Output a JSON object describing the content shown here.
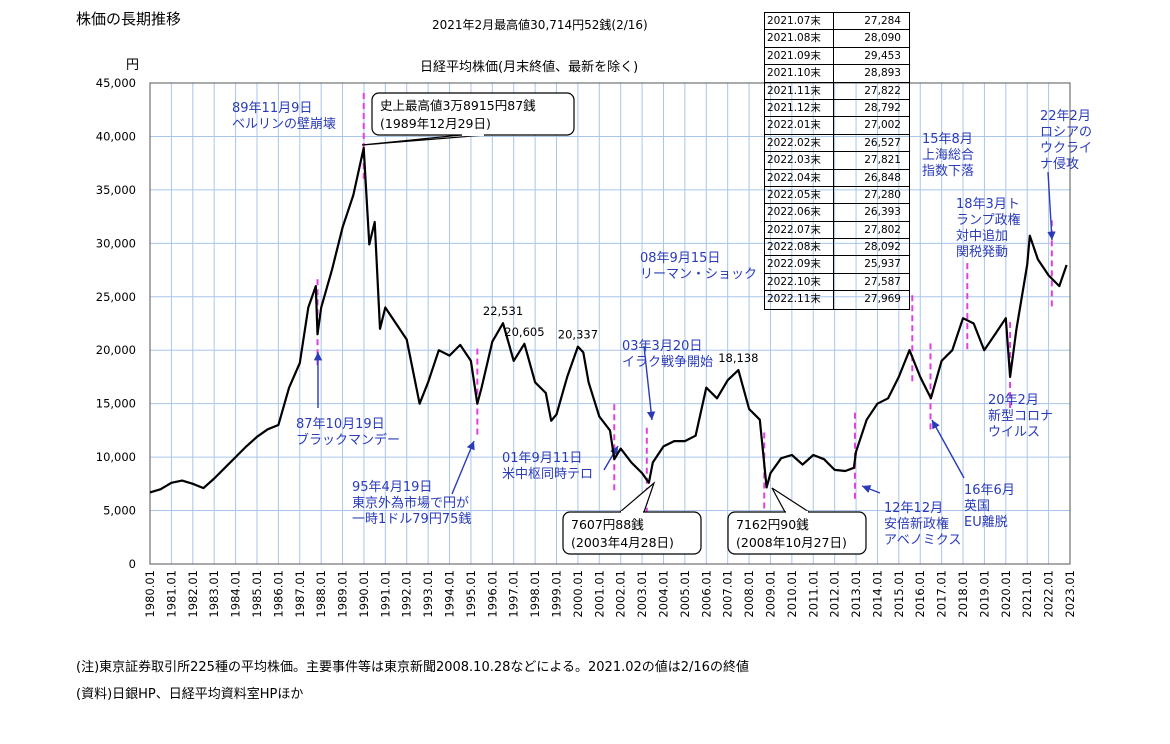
{
  "page": {
    "title": "株価の長期推移",
    "subtitle": "2021年2月最高値30,714円52銭(2/16)",
    "chart_title": "日経平均株価(月末終値、最新を除く)",
    "note": "(注)東京証券取引所225種の平均株価。主要事件等は東京新聞2008.10.28などによる。2021.02の値は2/16の終値",
    "source": "(資料)日銀HP、日経平均資料室HPほか"
  },
  "colors": {
    "line": "#000000",
    "grid": "#a9c6ea",
    "annotation": "#2a3bb8",
    "marker": "#e040e0"
  },
  "chart_data": {
    "type": "line",
    "title": "日経平均株価(月末終値、最新を除く)",
    "ylabel": "円",
    "xlabel": "",
    "ylim": [
      0,
      45000
    ],
    "xlim": [
      1980.0,
      2023.0
    ],
    "grid": true,
    "y_ticks": [
      "0",
      "5,000",
      "10,000",
      "15,000",
      "20,000",
      "25,000",
      "30,000",
      "35,000",
      "40,000",
      "45,000"
    ],
    "x_ticks": [
      "1980.01",
      "1981.01",
      "1982.01",
      "1983.01",
      "1984.01",
      "1985.01",
      "1986.01",
      "1987.01",
      "1988.01",
      "1989.01",
      "1990.01",
      "1991.01",
      "1992.01",
      "1993.01",
      "1994.01",
      "1995.01",
      "1996.01",
      "1997.01",
      "1998.01",
      "1999.01",
      "2000.01",
      "2001.01",
      "2002.01",
      "2003.01",
      "2004.01",
      "2005.01",
      "2006.01",
      "2007.01",
      "2008.01",
      "2009.01",
      "2010.01",
      "2011.01",
      "2012.01",
      "2013.01",
      "2014.01",
      "2015.01",
      "2016.01",
      "2017.01",
      "2018.01",
      "2019.01",
      "2020.01",
      "2021.01",
      "2022.01",
      "2023.01"
    ],
    "series": [
      {
        "name": "日経平均株価",
        "x": [
          1980.0,
          1980.5,
          1981.0,
          1981.5,
          1982.0,
          1982.5,
          1983.0,
          1983.5,
          1984.0,
          1984.5,
          1985.0,
          1985.5,
          1986.0,
          1986.5,
          1987.0,
          1987.4,
          1987.75,
          1987.83,
          1988.0,
          1988.5,
          1989.0,
          1989.5,
          1989.99,
          1990.25,
          1990.5,
          1990.75,
          1991.0,
          1991.5,
          1992.0,
          1992.6,
          1993.0,
          1993.5,
          1994.0,
          1994.5,
          1995.0,
          1995.3,
          1995.5,
          1996.0,
          1996.5,
          1997.0,
          1997.5,
          1998.0,
          1998.5,
          1998.75,
          1999.0,
          1999.5,
          2000.0,
          2000.25,
          2000.5,
          2001.0,
          2001.5,
          2001.7,
          2002.0,
          2002.5,
          2003.0,
          2003.32,
          2003.5,
          2004.0,
          2004.5,
          2005.0,
          2005.5,
          2006.0,
          2006.5,
          2007.0,
          2007.5,
          2008.0,
          2008.5,
          2008.82,
          2009.0,
          2009.5,
          2010.0,
          2010.5,
          2011.0,
          2011.5,
          2012.0,
          2012.5,
          2012.9,
          2013.0,
          2013.5,
          2014.0,
          2014.5,
          2015.0,
          2015.5,
          2016.0,
          2016.5,
          2017.0,
          2017.5,
          2018.0,
          2018.5,
          2018.99,
          2019.5,
          2020.0,
          2020.2,
          2020.5,
          2021.0,
          2021.12,
          2021.5,
          2022.0,
          2022.5,
          2022.84
        ],
        "values": [
          6700,
          7000,
          7600,
          7800,
          7500,
          7100,
          8000,
          9000,
          10000,
          11000,
          11900,
          12600,
          13000,
          16500,
          18800,
          24000,
          26000,
          21500,
          24000,
          27500,
          31500,
          34500,
          38915,
          29900,
          32000,
          22000,
          24000,
          22500,
          21000,
          15000,
          17000,
          20000,
          19500,
          20500,
          19000,
          15000,
          16500,
          20800,
          22531,
          19000,
          20605,
          17000,
          16000,
          13400,
          14000,
          17500,
          20337,
          19800,
          17000,
          13800,
          12500,
          9800,
          10800,
          9500,
          8500,
          7607,
          9500,
          11000,
          11500,
          11500,
          12000,
          16500,
          15500,
          17200,
          18138,
          14500,
          13500,
          7162,
          8500,
          9900,
          10200,
          9300,
          10200,
          9800,
          8800,
          8700,
          9000,
          10500,
          13500,
          15000,
          15500,
          17500,
          20000,
          17500,
          15500,
          19000,
          20000,
          23000,
          22500,
          20000,
          21500,
          23000,
          17500,
          22000,
          28000,
          30714,
          28500,
          27000,
          26000,
          27969
        ]
      }
    ],
    "peak_labels": [
      {
        "x": 1996.5,
        "value": 22531,
        "text": "22,531"
      },
      {
        "x": 1997.5,
        "value": 20605,
        "text": "20,605"
      },
      {
        "x": 2000.0,
        "value": 20337,
        "text": "20,337"
      },
      {
        "x": 2007.5,
        "value": 18138,
        "text": "18,138"
      }
    ],
    "event_markers": [
      1987.83,
      1989.99,
      1995.3,
      2001.7,
      2003.22,
      2008.71,
      2012.95,
      2015.63,
      2016.48,
      2018.2,
      2020.2,
      2022.15
    ],
    "callouts": [
      {
        "text": "史上最高値3万8915円87銭",
        "text2": "(1989年12月29日)"
      },
      {
        "text": "7607円88銭",
        "text2": "(2003年4月28日)"
      },
      {
        "text": "7162円90銭",
        "text2": "(2008年10月27日)"
      }
    ],
    "annotations": [
      {
        "lines": [
          "89年11月9日",
          "ベルリンの壁崩壊"
        ]
      },
      {
        "lines": [
          "87年10月19日",
          "ブラックマンデー"
        ]
      },
      {
        "lines": [
          "95年4月19日",
          "東京外為市場で円が",
          "一時1ドル79円75銭"
        ]
      },
      {
        "lines": [
          "01年9月11日",
          "米中枢同時テロ"
        ]
      },
      {
        "lines": [
          "03年3月20日",
          "イラク戦争開始"
        ]
      },
      {
        "lines": [
          "08年9月15日",
          "リーマン・ショック"
        ]
      },
      {
        "lines": [
          "12年12月",
          "安倍新政権",
          "アベノミクス"
        ]
      },
      {
        "lines": [
          "15年8月",
          "上海総合",
          "指数下落"
        ]
      },
      {
        "lines": [
          "16年6月",
          "英国",
          "EU離脱"
        ]
      },
      {
        "lines": [
          "18年3月ト",
          "ランプ政権",
          "対中追加",
          "関税発動"
        ]
      },
      {
        "lines": [
          "20年2月",
          "新型コロナ",
          "ウイルス"
        ]
      },
      {
        "lines": [
          "22年2月",
          "ロシアの",
          "ウクライ",
          "ナ侵攻"
        ]
      }
    ],
    "table": [
      {
        "month": "2021.07末",
        "value": "27,284"
      },
      {
        "month": "2021.08末",
        "value": "28,090"
      },
      {
        "month": "2021.09末",
        "value": "29,453"
      },
      {
        "month": "2021.10末",
        "value": "28,893"
      },
      {
        "month": "2021.11末",
        "value": "27,822"
      },
      {
        "month": "2021.12末",
        "value": "28,792"
      },
      {
        "month": "2022.01末",
        "value": "27,002"
      },
      {
        "month": "2022.02末",
        "value": "26,527"
      },
      {
        "month": "2022.03末",
        "value": "27,821"
      },
      {
        "month": "2022.04末",
        "value": "26,848"
      },
      {
        "month": "2022.05末",
        "value": "27,280"
      },
      {
        "month": "2022.06末",
        "value": "26,393"
      },
      {
        "month": "2022.07末",
        "value": "27,802"
      },
      {
        "month": "2022.08末",
        "value": "28,092"
      },
      {
        "month": "2022.09末",
        "value": "25,937"
      },
      {
        "month": "2022.10末",
        "value": "27,587"
      },
      {
        "month": "2022.11末",
        "value": "27,969"
      }
    ]
  }
}
